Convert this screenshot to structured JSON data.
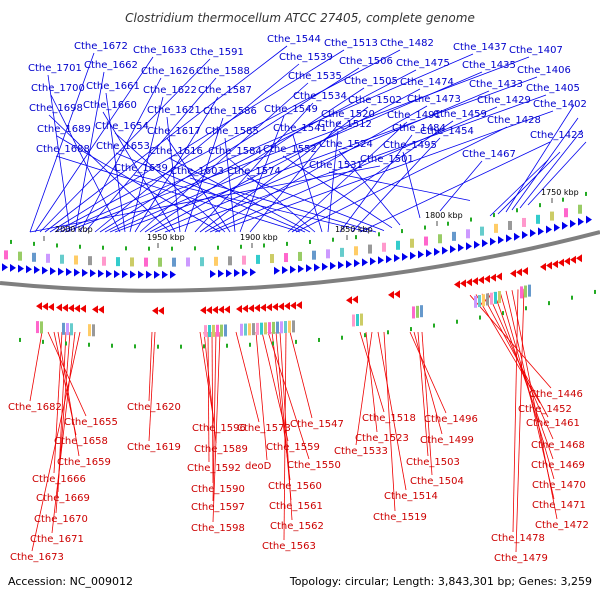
{
  "title": "Clostridium thermocellum ATCC 27405, complete genome",
  "footer": {
    "accession": "Accession: NC_009012",
    "summary": "Topology: circular; Length: 3,843,301 bp; Genes: 3,259"
  },
  "ticks": [
    "2000 kbp",
    "1950 kbp",
    "1900 kbp",
    "1850 kbp",
    "1800 kbp",
    "1750 kbp"
  ],
  "colors": {
    "forward": "#0000ee",
    "reverse": "#ee0000",
    "backbone": "#808080"
  },
  "top_labels": [
    "Cthe_1672",
    "Cthe_1633",
    "Cthe_1591",
    "Cthe_1544",
    "Cthe_1513",
    "Cthe_1482",
    "Cthe_1437",
    "Cthe_1407",
    "Cthe_1701",
    "Cthe_1662",
    "Cthe_1626",
    "Cthe_1588",
    "Cthe_1539",
    "Cthe_1506",
    "Cthe_1475",
    "Cthe_1435",
    "Cthe_1406",
    "Cthe_1700",
    "Cthe_1661",
    "Cthe_1622",
    "Cthe_1587",
    "Cthe_1535",
    "Cthe_1505",
    "Cthe_1474",
    "Cthe_1433",
    "Cthe_1405",
    "Cthe_1698",
    "Cthe_1660",
    "Cthe_1621",
    "Cthe_1586",
    "Cthe_1534",
    "Cthe_1502",
    "Cthe_1473",
    "Cthe_1429",
    "Cthe_1402",
    "Cthe_1689",
    "Cthe_1654",
    "Cthe_1617",
    "Cthe_1585",
    "Cthe_1549",
    "Cthe_1520",
    "Cthe_1491",
    "Cthe_1459",
    "Cthe_1428",
    "Cthe_1688",
    "Cthe_1653",
    "Cthe_1616",
    "Cthe_1584",
    "Cthe_1541",
    "Cthe_1512",
    "Cthe_1484",
    "Cthe_1454",
    "Cthe_1423",
    "Cthe_1639",
    "Cthe_1603",
    "Cthe_1574",
    "Cthe_1552",
    "Cthe_1524",
    "Cthe_1495",
    "Cthe_1467",
    "Cthe_1531",
    "Cthe_1501"
  ],
  "bottom_labels": [
    "Cthe_1682",
    "Cthe_1655",
    "Cthe_1658",
    "Cthe_1659",
    "Cthe_1666",
    "Cthe_1669",
    "Cthe_1670",
    "Cthe_1671",
    "Cthe_1673",
    "Cthe_1620",
    "Cthe_1619",
    "Cthe_1596",
    "Cthe_1589",
    "Cthe_1592",
    "Cthe_1590",
    "Cthe_1597",
    "Cthe_1598",
    "Cthe_1573",
    "deoD",
    "Cthe_1559",
    "Cthe_1550",
    "Cthe_1560",
    "Cthe_1561",
    "Cthe_1562",
    "Cthe_1563",
    "Cthe_1547",
    "Cthe_1518",
    "Cthe_1523",
    "Cthe_1533",
    "Cthe_1514",
    "Cthe_1519",
    "Cthe_1496",
    "Cthe_1499",
    "Cthe_1503",
    "Cthe_1504",
    "Cthe_1446",
    "Cthe_1452",
    "Cthe_1461",
    "Cthe_1468",
    "Cthe_1469",
    "Cthe_1470",
    "Cthe_1471",
    "Cthe_1472",
    "Cthe_1478",
    "Cthe_1479"
  ]
}
